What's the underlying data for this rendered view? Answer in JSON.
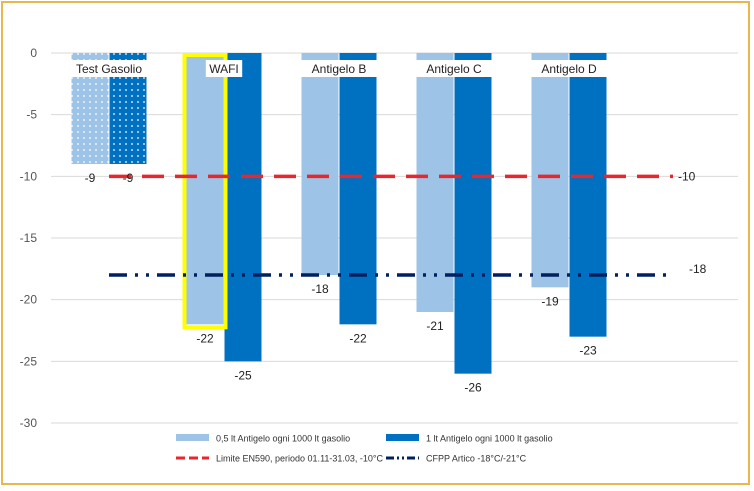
{
  "chart_data": {
    "type": "bar",
    "categories": [
      "Test Gasolio",
      "WAFI",
      "Antigelo B",
      "Antigelo C",
      "Antigelo D"
    ],
    "series": [
      {
        "name": "0,5 lt Antigelo ogni 1000 lt gasolio",
        "values": [
          -9,
          -22,
          -18,
          -21,
          -19
        ],
        "color": "#9dc3e6"
      },
      {
        "name": "1 lt Antigelo ogni 1000 lt gasolio",
        "values": [
          -9,
          -25,
          -22,
          -26,
          -23
        ],
        "color": "#0070c0"
      }
    ],
    "reference_lines": [
      {
        "name": "Limite EN590, periodo 01.11-31.03, -10°C",
        "value": -10,
        "label": "-10",
        "color": "#e8262b",
        "style": "dashed"
      },
      {
        "name": "CFPP Artico -18°C/-21°C",
        "value": -18,
        "label": "-18",
        "color": "#002060",
        "style": "dash-dot-dot"
      }
    ],
    "ylim": [
      -30,
      0
    ],
    "yticks": [
      0,
      -5,
      -10,
      -15,
      -20,
      -25,
      -30
    ],
    "highlighted_category": "WAFI",
    "highlight_color": "#ffff00",
    "dotted_category": "Test Gasolio",
    "grid": "horizontal",
    "legend_position": "bottom",
    "xlabel": "",
    "ylabel": "",
    "title": ""
  }
}
